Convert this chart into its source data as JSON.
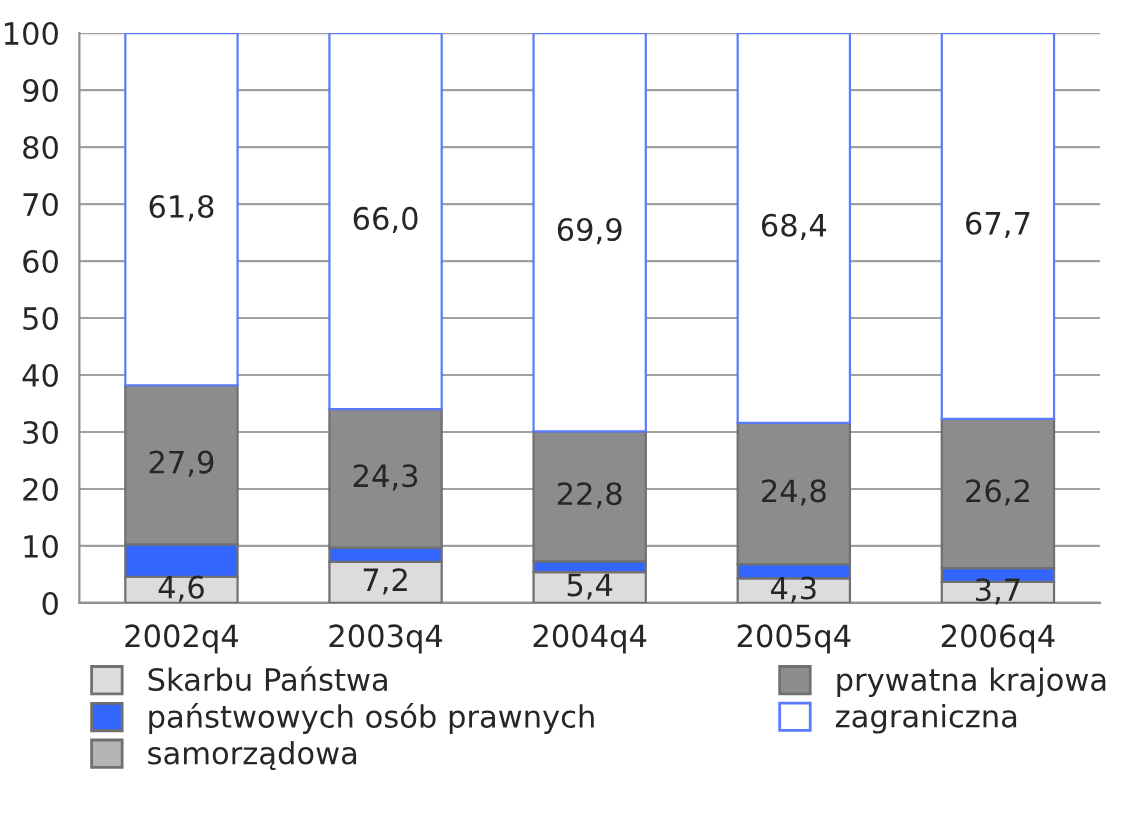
{
  "chart_data": {
    "type": "bar",
    "stacked": true,
    "categories": [
      "2002q4",
      "2003q4",
      "2004q4",
      "2005q4",
      "2006q4"
    ],
    "series": [
      {
        "name": "Skarbu Państwa",
        "color": "#dcdcdc",
        "values": [
          4.6,
          7.2,
          5.4,
          4.3,
          3.7
        ],
        "value_labels": [
          "4,6",
          "7,2",
          "5,4",
          "4,3",
          "3,7"
        ]
      },
      {
        "name": "państwowych osób prawnych",
        "color": "#3366ff",
        "values": [
          5.7,
          2.5,
          1.9,
          2.5,
          2.4
        ]
      },
      {
        "name": "samorządowa",
        "color": "#b4b4b4",
        "values": [
          null,
          null,
          null,
          null,
          null
        ]
      },
      {
        "name": "prywatna krajowa",
        "color": "#8c8c8c",
        "values": [
          27.9,
          24.3,
          22.8,
          24.8,
          26.2
        ],
        "value_labels": [
          "27,9",
          "24,3",
          "22,8",
          "24,8",
          "26,2"
        ]
      },
      {
        "name": "zagraniczna",
        "color": "#ffffff",
        "values": [
          61.8,
          66.0,
          69.9,
          68.4,
          67.7
        ],
        "value_labels": [
          "61,8",
          "66,0",
          "69,9",
          "68,4",
          "67,7"
        ]
      }
    ],
    "ylim": [
      0,
      100
    ],
    "yticks": [
      0,
      10,
      20,
      30,
      40,
      50,
      60,
      70,
      80,
      90,
      100
    ],
    "grid": "y",
    "legend": "bottom"
  }
}
